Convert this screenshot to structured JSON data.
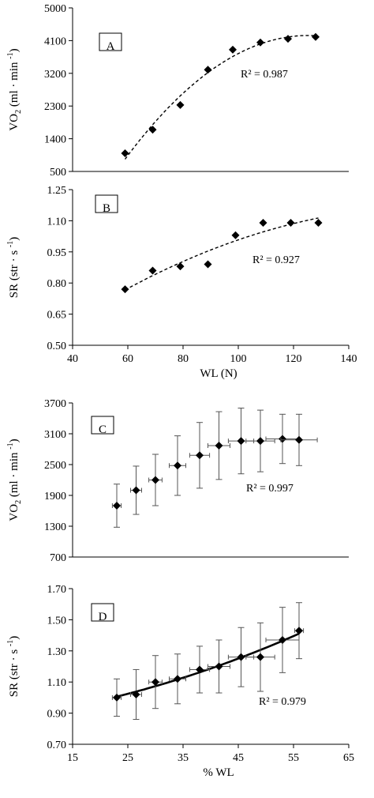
{
  "chart_data": [
    {
      "id": "A",
      "type": "scatter",
      "panel_label": "A",
      "ylabel": "VO2 (ml · min -1)",
      "xlabel": "",
      "xlim": [
        40,
        140
      ],
      "ylim": [
        500,
        5000
      ],
      "xticks": [],
      "yticks": [
        500,
        1400,
        2300,
        3200,
        4100,
        5000
      ],
      "annotation": "R² = 0.987",
      "trendline": "dashed",
      "points": [
        {
          "x": 59,
          "y": 1000
        },
        {
          "x": 69,
          "y": 1650
        },
        {
          "x": 79,
          "y": 2330
        },
        {
          "x": 89,
          "y": 3300
        },
        {
          "x": 98,
          "y": 3850
        },
        {
          "x": 108,
          "y": 4050
        },
        {
          "x": 118,
          "y": 4150
        },
        {
          "x": 128,
          "y": 4200
        }
      ]
    },
    {
      "id": "B",
      "type": "scatter",
      "panel_label": "B",
      "ylabel": "SR (str · s -1)",
      "xlabel": "WL (N)",
      "xlim": [
        40,
        140
      ],
      "ylim": [
        0.5,
        1.25
      ],
      "xticks": [
        40,
        60,
        80,
        100,
        120,
        140
      ],
      "yticks": [
        "0.50",
        "0.65",
        "0.80",
        "0.95",
        "1.10",
        "1.25"
      ],
      "annotation": "R² = 0.927",
      "trendline": "dashed",
      "points": [
        {
          "x": 59,
          "y": 0.77
        },
        {
          "x": 69,
          "y": 0.86
        },
        {
          "x": 79,
          "y": 0.88
        },
        {
          "x": 89,
          "y": 0.89
        },
        {
          "x": 99,
          "y": 1.03
        },
        {
          "x": 109,
          "y": 1.09
        },
        {
          "x": 119,
          "y": 1.09
        },
        {
          "x": 129,
          "y": 1.09
        }
      ]
    },
    {
      "id": "C",
      "type": "scatter",
      "panel_label": "C",
      "ylabel": "VO2 (ml · min -1)",
      "xlabel": "",
      "xlim": [
        15,
        65
      ],
      "ylim": [
        700,
        3700
      ],
      "xticks": [],
      "yticks": [
        700,
        1300,
        1900,
        2500,
        3100,
        3700
      ],
      "annotation": "R² = 0.997",
      "trendline": "none",
      "points": [
        {
          "x": 23,
          "y": 1700,
          "yerr": 420,
          "xerr": 0.8
        },
        {
          "x": 26.5,
          "y": 2000,
          "yerr": 470,
          "xerr": 1.0
        },
        {
          "x": 30,
          "y": 2200,
          "yerr": 500,
          "xerr": 1.2
        },
        {
          "x": 34,
          "y": 2480,
          "yerr": 580,
          "xerr": 1.5
        },
        {
          "x": 38,
          "y": 2680,
          "yerr": 640,
          "xerr": 1.8
        },
        {
          "x": 41.5,
          "y": 2870,
          "yerr": 660,
          "xerr": 2.0
        },
        {
          "x": 45.5,
          "y": 2960,
          "yerr": 640,
          "xerr": 2.3
        },
        {
          "x": 49,
          "y": 2960,
          "yerr": 600,
          "xerr": 2.6
        },
        {
          "x": 53,
          "y": 3000,
          "yerr": 480,
          "xerr": 3.0
        },
        {
          "x": 56,
          "y": 2980,
          "yerr": 500,
          "xerr": 3.3
        }
      ]
    },
    {
      "id": "D",
      "type": "scatter",
      "panel_label": "D",
      "ylabel": "SR (str · s -1)",
      "xlabel": "% WL",
      "xlim": [
        15,
        65
      ],
      "ylim": [
        0.7,
        1.7
      ],
      "xticks": [
        15,
        25,
        35,
        45,
        55,
        65
      ],
      "yticks": [
        "0.70",
        "0.90",
        "1.10",
        "1.30",
        "1.50",
        "1.70"
      ],
      "annotation": "R² = 0.979",
      "trendline": "solid",
      "points": [
        {
          "x": 23,
          "y": 1.0,
          "yerr": 0.12,
          "xerr": 0.8
        },
        {
          "x": 26.5,
          "y": 1.02,
          "yerr": 0.16,
          "xerr": 1.0
        },
        {
          "x": 30,
          "y": 1.1,
          "yerr": 0.17,
          "xerr": 1.2
        },
        {
          "x": 34,
          "y": 1.12,
          "yerr": 0.16,
          "xerr": 1.5
        },
        {
          "x": 38,
          "y": 1.18,
          "yerr": 0.15,
          "xerr": 1.8
        },
        {
          "x": 41.5,
          "y": 1.2,
          "yerr": 0.17,
          "xerr": 2.0
        },
        {
          "x": 45.5,
          "y": 1.26,
          "yerr": 0.19,
          "xerr": 2.3
        },
        {
          "x": 49,
          "y": 1.26,
          "yerr": 0.22,
          "xerr": 2.6
        },
        {
          "x": 53,
          "y": 1.37,
          "yerr": 0.21,
          "xerr": 3.0
        },
        {
          "x": 56,
          "y": 1.43,
          "yerr": 0.18,
          "xerr": 0.8
        }
      ]
    }
  ]
}
